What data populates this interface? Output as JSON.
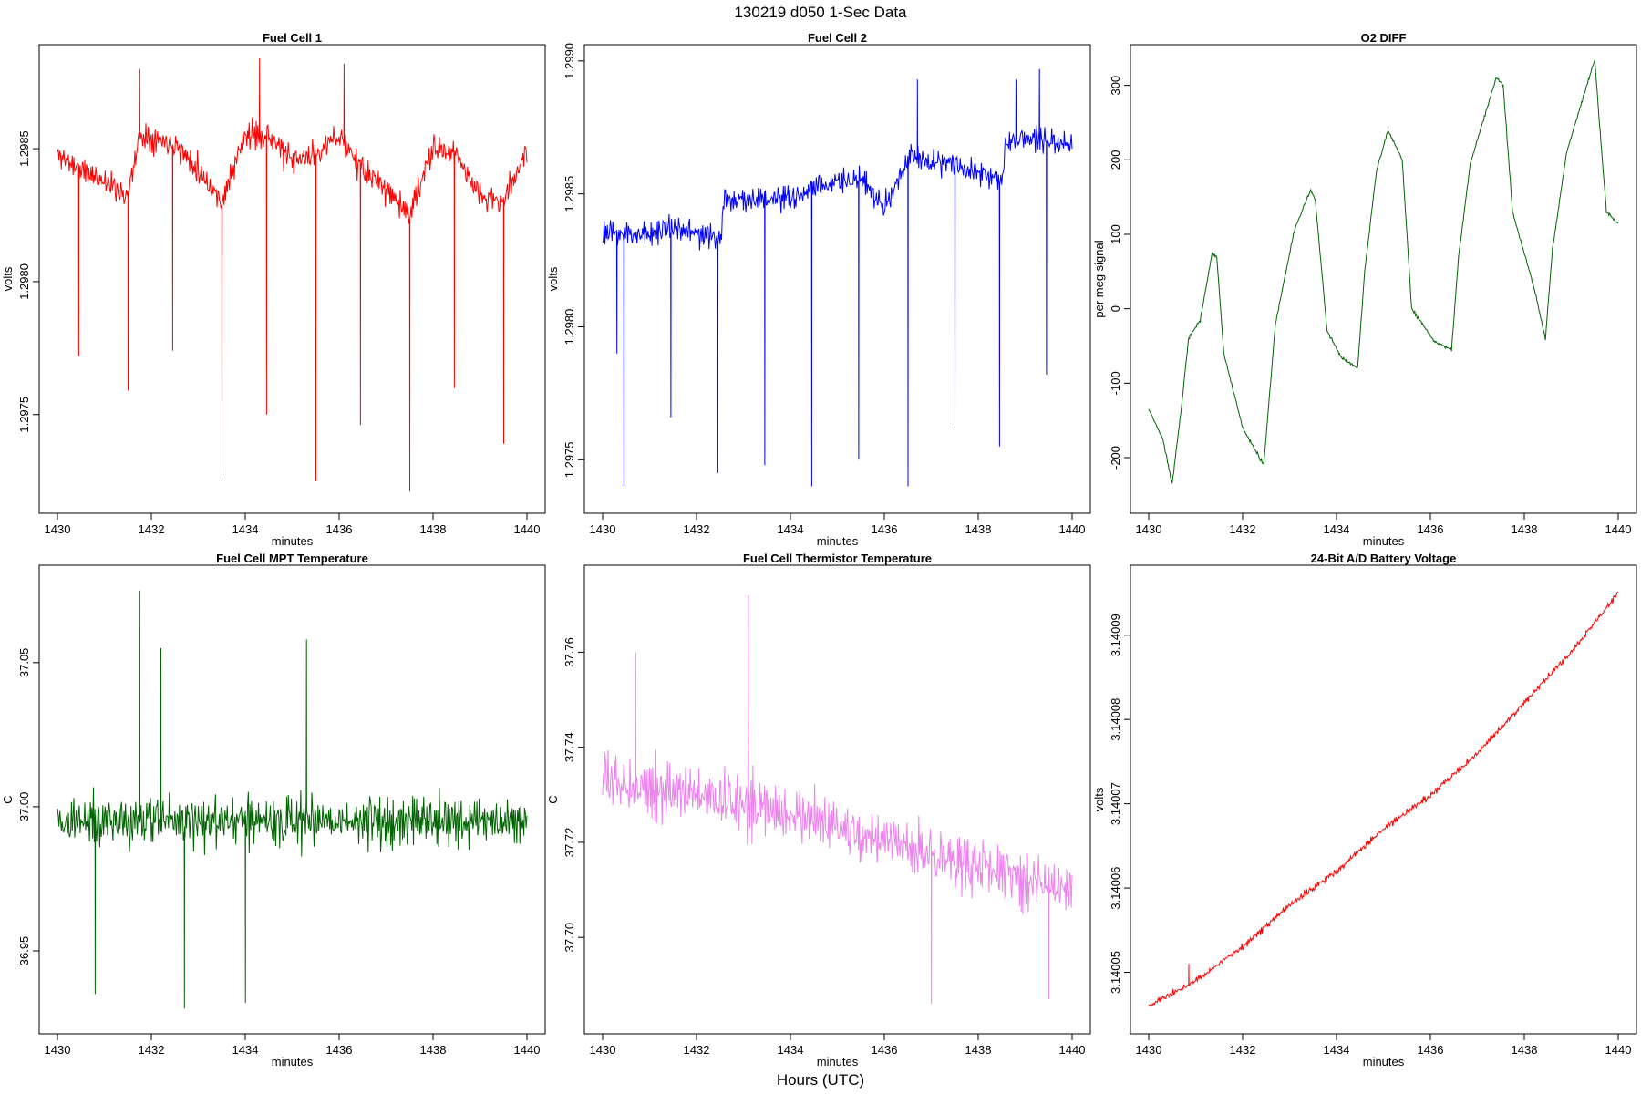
{
  "figure": {
    "title": "130219   d050   1-Sec Data",
    "xlabel": "Hours (UTC)"
  },
  "chart_data": [
    {
      "type": "line",
      "title": "Fuel Cell 1",
      "xlabel": "minutes",
      "ylabel": "volts",
      "color": "#ff0000",
      "xlim": [
        1430,
        1440
      ],
      "ylim": [
        1.29717,
        1.29885
      ],
      "xticks": [
        1430,
        1432,
        1434,
        1436,
        1438,
        1440
      ],
      "xtick_labels": [
        "1430",
        "1432",
        "1434",
        "1436",
        "1438",
        "1440"
      ],
      "yticks": [
        1.2975,
        1.298,
        1.2985
      ],
      "ytick_labels": [
        "1.2975",
        "1.2980",
        "1.2985"
      ],
      "series": [
        {
          "baseline": [
            [
              1430,
              1.29848
            ],
            [
              1430.5,
              1.29842
            ],
            [
              1431,
              1.29838
            ],
            [
              1431.5,
              1.29832
            ],
            [
              1431.75,
              1.29855
            ],
            [
              1432.5,
              1.29852
            ],
            [
              1433,
              1.29842
            ],
            [
              1433.5,
              1.2983
            ],
            [
              1434,
              1.29855
            ],
            [
              1434.5,
              1.29855
            ],
            [
              1435,
              1.29845
            ],
            [
              1435.5,
              1.29848
            ],
            [
              1436,
              1.29855
            ],
            [
              1436.5,
              1.29842
            ],
            [
              1437,
              1.29835
            ],
            [
              1437.5,
              1.29825
            ],
            [
              1438,
              1.2985
            ],
            [
              1438.5,
              1.29848
            ],
            [
              1439,
              1.29832
            ],
            [
              1439.5,
              1.2983
            ],
            [
              1440,
              1.2985
            ]
          ],
          "noise": 0.00012,
          "spikes": [
            [
              1430.45,
              1.29772
            ],
            [
              1431.5,
              1.29759
            ],
            [
              1432.45,
              1.29774
            ],
            [
              1433.5,
              1.29727
            ],
            [
              1434.45,
              1.2975
            ],
            [
              1435.5,
              1.29725
            ],
            [
              1436.45,
              1.29746
            ],
            [
              1437.5,
              1.29721
            ],
            [
              1438.45,
              1.2976
            ],
            [
              1439.5,
              1.29739
            ]
          ],
          "up_spikes": [
            [
              1431.75,
              1.2988
            ],
            [
              1434.3,
              1.29884
            ],
            [
              1436.1,
              1.29882
            ]
          ],
          "seed": 11
        }
      ]
    },
    {
      "type": "line",
      "title": "Fuel Cell 2",
      "xlabel": "minutes",
      "ylabel": "volts",
      "color": "#0000ff",
      "xlim": [
        1430,
        1440
      ],
      "ylim": [
        1.29734,
        1.29902
      ],
      "xticks": [
        1430,
        1432,
        1434,
        1436,
        1438,
        1440
      ],
      "xtick_labels": [
        "1430",
        "1432",
        "1434",
        "1436",
        "1438",
        "1440"
      ],
      "yticks": [
        1.2975,
        1.298,
        1.2985,
        1.299
      ],
      "ytick_labels": [
        "1.2975",
        "1.2980",
        "1.2985",
        "1.2990"
      ],
      "series": [
        {
          "baseline": [
            [
              1430,
              1.29835
            ],
            [
              1430.5,
              1.29835
            ],
            [
              1431,
              1.29835
            ],
            [
              1431.5,
              1.29838
            ],
            [
              1432,
              1.29835
            ],
            [
              1432.5,
              1.29833
            ],
            [
              1432.6,
              1.29848
            ],
            [
              1433,
              1.29848
            ],
            [
              1434,
              1.29848
            ],
            [
              1434.5,
              1.29852
            ],
            [
              1435,
              1.29855
            ],
            [
              1435.5,
              1.29855
            ],
            [
              1436,
              1.29845
            ],
            [
              1436.6,
              1.29865
            ],
            [
              1437,
              1.29862
            ],
            [
              1437.5,
              1.29862
            ],
            [
              1438,
              1.29858
            ],
            [
              1438.5,
              1.29855
            ],
            [
              1438.6,
              1.2987
            ],
            [
              1439,
              1.29872
            ],
            [
              1440,
              1.29868
            ]
          ],
          "noise": 0.00012,
          "spikes": [
            [
              1430.3,
              1.2979
            ],
            [
              1430.45,
              1.2974
            ],
            [
              1431.45,
              1.29766
            ],
            [
              1432.45,
              1.29745
            ],
            [
              1433.45,
              1.29748
            ],
            [
              1434.45,
              1.2974
            ],
            [
              1435.45,
              1.2975
            ],
            [
              1436.5,
              1.2974
            ],
            [
              1437.5,
              1.29762
            ],
            [
              1438.45,
              1.29755
            ],
            [
              1439.45,
              1.29782
            ]
          ],
          "up_spikes": [
            [
              1436.7,
              1.29893
            ],
            [
              1438.8,
              1.29893
            ],
            [
              1439.3,
              1.29897
            ]
          ],
          "seed": 23
        }
      ]
    },
    {
      "type": "line",
      "title": "O2 DIFF",
      "xlabel": "minutes",
      "ylabel": "per meg signal",
      "color": "#006400",
      "xlim": [
        1430,
        1440
      ],
      "ylim": [
        -260,
        340
      ],
      "xticks": [
        1430,
        1432,
        1434,
        1436,
        1438,
        1440
      ],
      "xtick_labels": [
        "1430",
        "1432",
        "1434",
        "1436",
        "1438",
        "1440"
      ],
      "yticks": [
        -200,
        -100,
        0,
        100,
        200,
        300
      ],
      "ytick_labels": [
        "-200",
        "-100",
        "0",
        "100",
        "200",
        "300"
      ],
      "series": [
        {
          "baseline": [
            [
              1430,
              -135
            ],
            [
              1430.3,
              -175
            ],
            [
              1430.5,
              -235
            ],
            [
              1430.7,
              -130
            ],
            [
              1430.85,
              -40
            ],
            [
              1431.1,
              -15
            ],
            [
              1431.35,
              75
            ],
            [
              1431.45,
              70
            ],
            [
              1431.6,
              -60
            ],
            [
              1432,
              -160
            ],
            [
              1432.45,
              -210
            ],
            [
              1432.7,
              -20
            ],
            [
              1433.1,
              105
            ],
            [
              1433.45,
              160
            ],
            [
              1433.55,
              145
            ],
            [
              1433.8,
              -30
            ],
            [
              1434.1,
              -65
            ],
            [
              1434.45,
              -80
            ],
            [
              1434.6,
              50
            ],
            [
              1434.85,
              185
            ],
            [
              1435.1,
              240
            ],
            [
              1435.4,
              200
            ],
            [
              1435.6,
              0
            ],
            [
              1436.1,
              -45
            ],
            [
              1436.45,
              -55
            ],
            [
              1436.6,
              70
            ],
            [
              1436.85,
              195
            ],
            [
              1437.4,
              310
            ],
            [
              1437.55,
              300
            ],
            [
              1437.75,
              130
            ],
            [
              1438.2,
              30
            ],
            [
              1438.45,
              -40
            ],
            [
              1438.6,
              80
            ],
            [
              1438.9,
              210
            ],
            [
              1439.5,
              335
            ],
            [
              1439.6,
              250
            ],
            [
              1439.75,
              130
            ],
            [
              1440,
              115
            ]
          ],
          "noise": 5,
          "spikes": [],
          "up_spikes": [],
          "seed": 37
        }
      ]
    },
    {
      "type": "line",
      "title": "Fuel Cell MPT Temperature",
      "xlabel": "minutes",
      "ylabel": "C",
      "color": "#006400",
      "xlim": [
        1430,
        1440
      ],
      "ylim": [
        36.925,
        37.08
      ],
      "xticks": [
        1430,
        1432,
        1434,
        1436,
        1438,
        1440
      ],
      "xtick_labels": [
        "1430",
        "1432",
        "1434",
        "1436",
        "1438",
        "1440"
      ],
      "yticks": [
        36.95,
        37.0,
        37.05
      ],
      "ytick_labels": [
        "36.95",
        "37.00",
        "37.05"
      ],
      "series": [
        {
          "baseline": [
            [
              1430,
              36.995
            ],
            [
              1440,
              36.995
            ]
          ],
          "noise": 0.022,
          "spikes": [
            [
              1432.7,
              36.93
            ],
            [
              1434.0,
              36.932
            ],
            [
              1430.8,
              36.935
            ]
          ],
          "up_spikes": [
            [
              1431.75,
              37.075
            ],
            [
              1432.2,
              37.055
            ],
            [
              1435.3,
              37.058
            ]
          ],
          "seed": 41
        }
      ]
    },
    {
      "type": "line",
      "title": "Fuel Cell Thermistor Temperature",
      "xlabel": "minutes",
      "ylabel": "C",
      "color": "#ee82ee",
      "xlim": [
        1430,
        1440
      ],
      "ylim": [
        37.682,
        37.776
      ],
      "xticks": [
        1430,
        1432,
        1434,
        1436,
        1438,
        1440
      ],
      "xtick_labels": [
        "1430",
        "1432",
        "1434",
        "1436",
        "1438",
        "1440"
      ],
      "yticks": [
        37.7,
        37.72,
        37.74,
        37.76
      ],
      "ytick_labels": [
        "37.70",
        "37.72",
        "37.74",
        "37.76"
      ],
      "series": [
        {
          "baseline": [
            [
              1430,
              37.733
            ],
            [
              1432,
              37.73
            ],
            [
              1434,
              37.726
            ],
            [
              1436,
              37.72
            ],
            [
              1438,
              37.715
            ],
            [
              1440,
              37.71
            ]
          ],
          "noise": 0.014,
          "spikes": [
            [
              1437.0,
              37.686
            ],
            [
              1439.5,
              37.687
            ]
          ],
          "up_spikes": [
            [
              1433.1,
              37.772
            ],
            [
              1430.7,
              37.76
            ]
          ],
          "seed": 53
        }
      ]
    },
    {
      "type": "line",
      "title": "24-Bit A/D Battery Voltage",
      "xlabel": "minutes",
      "ylabel": "volts",
      "color": "#ff0000",
      "xlim": [
        1430,
        1440
      ],
      "ylim": [
        3.140044,
        3.140097
      ],
      "xticks": [
        1430,
        1432,
        1434,
        1436,
        1438,
        1440
      ],
      "xtick_labels": [
        "1430",
        "1432",
        "1434",
        "1436",
        "1438",
        "1440"
      ],
      "yticks": [
        3.14005,
        3.14006,
        3.14007,
        3.14008,
        3.14009
      ],
      "ytick_labels": [
        "3.14005",
        "3.14006",
        "3.14007",
        "3.14008",
        "3.14009"
      ],
      "series": [
        {
          "baseline": [
            [
              1430,
              3.140046
            ],
            [
              1431,
              3.140049
            ],
            [
              1432,
              3.140053
            ],
            [
              1433,
              3.140058
            ],
            [
              1434,
              3.140062
            ],
            [
              1435,
              3.140067
            ],
            [
              1436,
              3.140071
            ],
            [
              1437,
              3.140076
            ],
            [
              1438,
              3.140082
            ],
            [
              1439,
              3.140088
            ],
            [
              1440,
              3.140095
            ]
          ],
          "noise": 9e-07,
          "spikes": [],
          "up_spikes": [
            [
              1430.85,
              3.140051
            ]
          ],
          "seed": 67
        }
      ]
    }
  ]
}
